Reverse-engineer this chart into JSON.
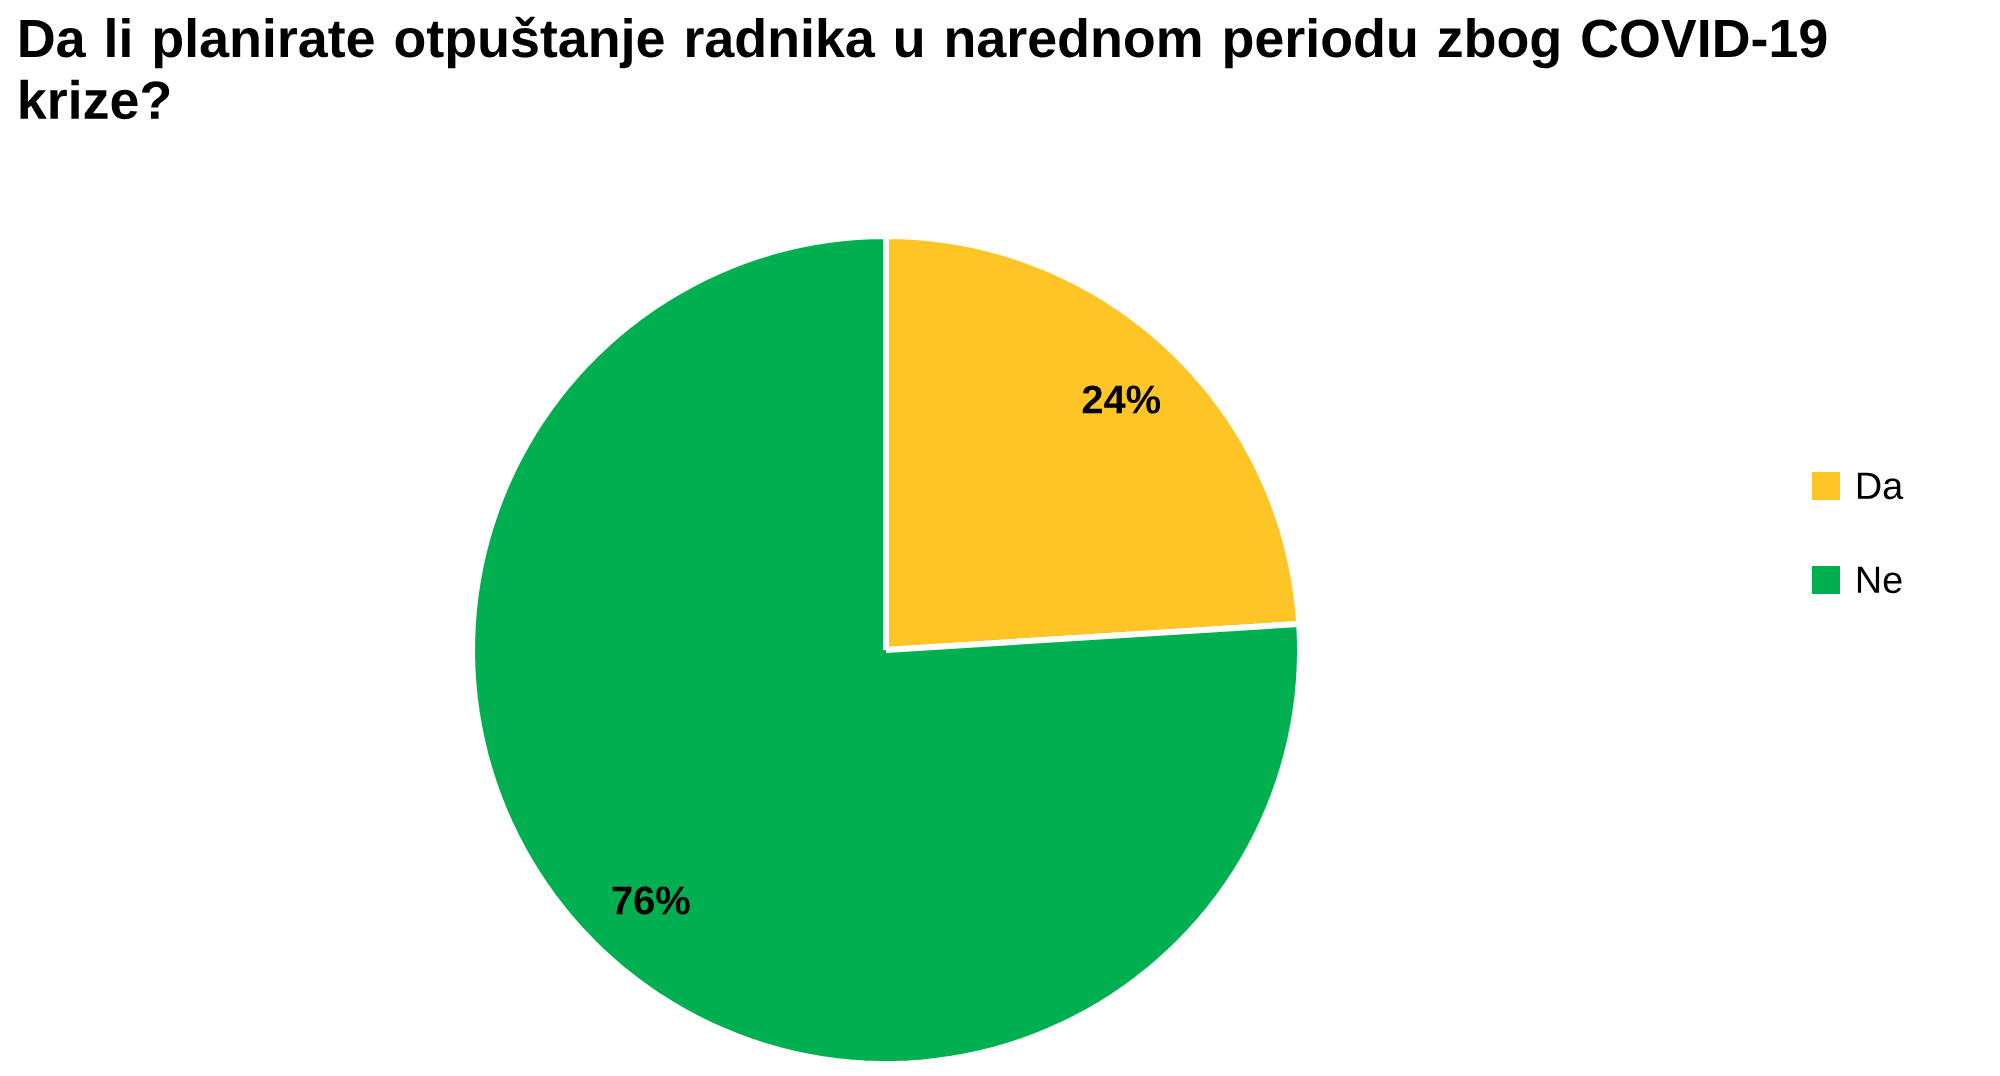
{
  "chart_data": {
    "type": "pie",
    "title": "Da li planirate otpuštanje radnika u narednom periodu zbog COVID-19 krize?",
    "categories": [
      "Da",
      "Ne"
    ],
    "values": [
      24,
      76
    ],
    "colors": [
      "#ffc527",
      "#00b050"
    ],
    "value_labels": [
      "24%",
      "76%"
    ],
    "legend": "right"
  }
}
